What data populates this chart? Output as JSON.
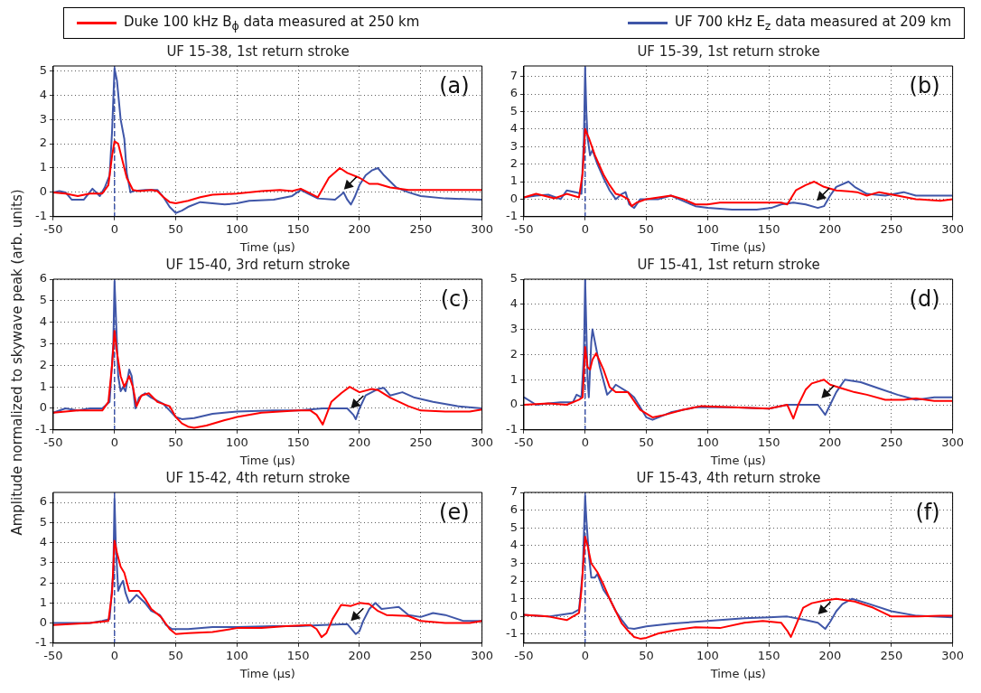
{
  "chart_data": [
    {
      "type": "line",
      "title": "UF 15-38, 1st return stroke",
      "xlabel": "Time (μs)",
      "ylabel": "Amplitude normalized to skywave peak (arb. units)",
      "legend": "top",
      "grid": true,
      "marker": "none",
      "line_style": "solid",
      "xlim": [
        -50,
        300
      ],
      "xticks": [
        -50,
        0,
        50,
        100,
        150,
        200,
        250,
        300
      ],
      "ylim": [
        -1,
        5.2
      ],
      "yticks": [
        -1,
        0,
        1,
        2,
        3,
        4,
        5
      ],
      "annotations": [
        "(a)"
      ],
      "ref_lines": [
        {
          "axis": "x",
          "value": 0,
          "color": "#3f56a8",
          "line_style": "dashed"
        }
      ],
      "series": [
        {
          "name": "Duke 100 kHz B$_{ϕ}$ data measured at 250 km",
          "color": "#ff0000",
          "x": [
            -50,
            -40,
            -30,
            -20,
            -10,
            -5,
            -2,
            0,
            3,
            6,
            10,
            15,
            20,
            30,
            35,
            40,
            45,
            50,
            60,
            70,
            80,
            100,
            120,
            135,
            145,
            152,
            158,
            166,
            175,
            184,
            190,
            200,
            208,
            215,
            225,
            240,
            260,
            280,
            300
          ],
          "values": [
            0,
            -0.05,
            -0.15,
            -0.05,
            -0.05,
            0.3,
            1.5,
            2.1,
            2.0,
            1.4,
            0.6,
            0.1,
            0.05,
            0.1,
            0.05,
            -0.2,
            -0.4,
            -0.45,
            -0.35,
            -0.2,
            -0.1,
            -0.05,
            0.05,
            0.1,
            0.05,
            0.15,
            0,
            -0.2,
            0.6,
            1.0,
            0.8,
            0.6,
            0.35,
            0.35,
            0.2,
            0.1,
            0.1,
            0.1,
            0.1
          ]
        },
        {
          "name": "UF 700 kHz E$_{z}$ data measured at 209 km",
          "color": "#3f56a8",
          "x": [
            -50,
            -45,
            -40,
            -35,
            -25,
            -18,
            -12,
            -8,
            -4,
            -2,
            0,
            2,
            5,
            8,
            10,
            13,
            15,
            25,
            35,
            40,
            45,
            50,
            55,
            60,
            70,
            80,
            90,
            100,
            110,
            130,
            145,
            152,
            158,
            166,
            180,
            185,
            187,
            190,
            193,
            196,
            200,
            205,
            210,
            215,
            220,
            230,
            240,
            250,
            270,
            300
          ],
          "values": [
            0,
            0.05,
            0,
            -0.3,
            -0.3,
            0.15,
            -0.15,
            0.2,
            0.7,
            2.5,
            5.1,
            4.6,
            3.0,
            2.2,
            0.8,
            0,
            0.05,
            0.1,
            0.1,
            -0.2,
            -0.6,
            -0.85,
            -0.75,
            -0.6,
            -0.4,
            -0.45,
            -0.5,
            -0.45,
            -0.35,
            -0.3,
            -0.15,
            0.1,
            -0.05,
            -0.25,
            -0.3,
            -0.1,
            0,
            -0.3,
            -0.5,
            -0.2,
            0.3,
            0.7,
            0.9,
            1.0,
            0.7,
            0.2,
            0,
            -0.15,
            -0.25,
            -0.3
          ]
        }
      ]
    },
    {
      "type": "line",
      "title": "UF 15-39, 1st return stroke",
      "xlabel": "Time (μs)",
      "grid": true,
      "marker": "none",
      "line_style": "solid",
      "xlim": [
        -50,
        300
      ],
      "xticks": [
        -50,
        0,
        50,
        100,
        150,
        200,
        250,
        300
      ],
      "ylim": [
        -1,
        7.6
      ],
      "yticks": [
        -1,
        0,
        1,
        2,
        3,
        4,
        5,
        6,
        7
      ],
      "annotations": [
        "(b)"
      ],
      "ref_lines": [
        {
          "axis": "x",
          "value": 0,
          "color": "#3f56a8",
          "line_style": "dashed"
        }
      ],
      "series": [
        {
          "color": "#ff0000",
          "x": [
            -50,
            -40,
            -25,
            -15,
            -5,
            -2,
            0,
            3,
            8,
            15,
            20,
            25,
            30,
            35,
            38,
            42,
            50,
            60,
            70,
            80,
            90,
            100,
            110,
            130,
            150,
            160,
            165,
            172,
            180,
            187,
            195,
            205,
            215,
            222,
            230,
            240,
            255,
            270,
            290,
            300
          ],
          "values": [
            0.1,
            0.3,
            0.05,
            0.3,
            0.1,
            1.5,
            4.0,
            3.5,
            2.5,
            1.4,
            0.8,
            0.3,
            0.2,
            0,
            -0.4,
            -0.2,
            0,
            0.1,
            0.2,
            0,
            -0.3,
            -0.3,
            -0.2,
            -0.2,
            -0.2,
            -0.2,
            -0.3,
            0.5,
            0.8,
            1.0,
            0.7,
            0.5,
            0.45,
            0.4,
            0.2,
            0.4,
            0.2,
            0,
            -0.1,
            0
          ]
        },
        {
          "color": "#3f56a8",
          "x": [
            -50,
            -40,
            -30,
            -20,
            -15,
            -8,
            -3,
            -1,
            0,
            1,
            2,
            4,
            6,
            10,
            15,
            20,
            25,
            30,
            33,
            36,
            40,
            45,
            60,
            70,
            80,
            90,
            100,
            120,
            140,
            152,
            160,
            170,
            180,
            190,
            195,
            200,
            205,
            215,
            220,
            230,
            245,
            260,
            270,
            300
          ],
          "values": [
            0.1,
            0.2,
            0.25,
            0,
            0.5,
            0.4,
            0.3,
            3.5,
            7.5,
            5,
            3.5,
            2.5,
            2.8,
            2.0,
            1.2,
            0.5,
            0,
            0.3,
            0.4,
            -0.3,
            -0.5,
            0,
            0,
            0.2,
            -0.1,
            -0.4,
            -0.5,
            -0.6,
            -0.6,
            -0.5,
            -0.3,
            -0.2,
            -0.3,
            -0.5,
            -0.4,
            0.2,
            0.7,
            1.0,
            0.7,
            0.3,
            0.2,
            0.4,
            0.2,
            0.2
          ]
        }
      ]
    },
    {
      "type": "line",
      "title": "UF 15-40, 3rd return stroke",
      "xlabel": "Time (μs)",
      "grid": true,
      "marker": "none",
      "line_style": "solid",
      "xlim": [
        -50,
        300
      ],
      "xticks": [
        -50,
        0,
        50,
        100,
        150,
        200,
        250,
        300
      ],
      "ylim": [
        -1,
        6
      ],
      "yticks": [
        -1,
        0,
        1,
        2,
        3,
        4,
        5,
        6
      ],
      "annotations": [
        "(c)"
      ],
      "ref_lines": [
        {
          "axis": "x",
          "value": 0,
          "color": "#3f56a8",
          "line_style": "dashed"
        }
      ],
      "series": [
        {
          "color": "#ff0000",
          "x": [
            -50,
            -30,
            -10,
            -5,
            -2,
            0,
            2,
            5,
            8,
            12,
            15,
            18,
            22,
            28,
            35,
            45,
            50,
            55,
            60,
            65,
            75,
            90,
            100,
            120,
            150,
            160,
            165,
            170,
            173,
            177,
            185,
            192,
            200,
            210,
            215,
            225,
            240,
            250,
            270,
            290,
            300
          ],
          "values": [
            -0.2,
            -0.1,
            -0.1,
            0.3,
            2,
            3.6,
            2.6,
            1.5,
            1.0,
            1.5,
            1.0,
            0.1,
            0.6,
            0.7,
            0.3,
            0.1,
            -0.4,
            -0.7,
            -0.85,
            -0.9,
            -0.8,
            -0.55,
            -0.4,
            -0.2,
            -0.1,
            -0.1,
            -0.3,
            -0.75,
            -0.3,
            0.3,
            0.7,
            1.0,
            0.75,
            0.9,
            0.85,
            0.5,
            0.1,
            -0.1,
            -0.15,
            -0.15,
            -0.05
          ]
        },
        {
          "color": "#3f56a8",
          "x": [
            -50,
            -40,
            -30,
            -20,
            -10,
            -4,
            -1,
            0,
            1,
            3,
            5,
            7,
            9,
            12,
            14,
            17,
            20,
            25,
            30,
            40,
            45,
            50,
            55,
            65,
            80,
            100,
            130,
            150,
            170,
            190,
            195,
            197,
            200,
            205,
            215,
            220,
            225,
            235,
            245,
            260,
            280,
            300
          ],
          "values": [
            -0.2,
            0,
            -0.1,
            0,
            0,
            0.3,
            3,
            5.9,
            4.5,
            1.5,
            0.8,
            1.0,
            0.8,
            1.8,
            1.5,
            0,
            0.5,
            0.7,
            0.5,
            0.2,
            -0.1,
            -0.4,
            -0.5,
            -0.45,
            -0.25,
            -0.15,
            -0.1,
            -0.1,
            0,
            0,
            -0.3,
            -0.5,
            0,
            0.6,
            0.9,
            0.95,
            0.6,
            0.75,
            0.5,
            0.3,
            0.1,
            0
          ]
        }
      ]
    },
    {
      "type": "line",
      "title": "UF 15-41, 1st return stroke",
      "xlabel": "Time (μs)",
      "grid": true,
      "marker": "none",
      "line_style": "solid",
      "xlim": [
        -50,
        300
      ],
      "xticks": [
        -50,
        0,
        50,
        100,
        150,
        200,
        250,
        300
      ],
      "ylim": [
        -1,
        5
      ],
      "yticks": [
        -1,
        0,
        1,
        2,
        3,
        4,
        5
      ],
      "annotations": [
        "(d)"
      ],
      "ref_lines": [
        {
          "axis": "x",
          "value": 0,
          "color": "#3f56a8",
          "line_style": "dashed"
        }
      ],
      "series": [
        {
          "color": "#ff0000",
          "x": [
            -50,
            -30,
            -15,
            -5,
            -2,
            0,
            2,
            4,
            6,
            9,
            15,
            20,
            25,
            35,
            45,
            55,
            65,
            80,
            95,
            120,
            150,
            165,
            170,
            174,
            180,
            185,
            195,
            200,
            210,
            220,
            230,
            245,
            260,
            270,
            285,
            300
          ],
          "values": [
            0,
            0.05,
            0,
            0.2,
            0.3,
            2.3,
            1.5,
            1.4,
            1.8,
            2.05,
            1.4,
            0.7,
            0.5,
            0.5,
            -0.2,
            -0.5,
            -0.4,
            -0.2,
            -0.05,
            -0.1,
            -0.15,
            0,
            -0.55,
            0,
            0.6,
            0.85,
            1.0,
            0.8,
            0.65,
            0.5,
            0.4,
            0.2,
            0.2,
            0.25,
            0.15,
            0.15
          ]
        },
        {
          "color": "#3f56a8",
          "x": [
            -50,
            -40,
            -30,
            -20,
            -10,
            -7,
            -3,
            -1,
            0,
            1,
            2,
            3,
            5,
            6,
            8,
            12,
            18,
            22,
            25,
            35,
            40,
            45,
            50,
            55,
            70,
            90,
            120,
            150,
            165,
            190,
            196,
            200,
            205,
            212,
            225,
            240,
            255,
            270,
            285,
            300
          ],
          "values": [
            0.3,
            0,
            0.05,
            0.1,
            0.1,
            0.4,
            0.3,
            2,
            5,
            3,
            1,
            0.3,
            2.5,
            3.0,
            2.5,
            1.5,
            0.4,
            0.6,
            0.8,
            0.5,
            0.3,
            -0.1,
            -0.5,
            -0.6,
            -0.3,
            -0.1,
            -0.1,
            -0.15,
            0,
            0,
            -0.4,
            0,
            0.5,
            1.0,
            0.9,
            0.65,
            0.4,
            0.2,
            0.3,
            0.3
          ]
        }
      ]
    },
    {
      "type": "line",
      "title": "UF 15-42, 4th return stroke",
      "xlabel": "Time (μs)",
      "grid": true,
      "marker": "none",
      "line_style": "solid",
      "xlim": [
        -50,
        300
      ],
      "xticks": [
        -50,
        0,
        50,
        100,
        150,
        200,
        250,
        300
      ],
      "ylim": [
        -1,
        6.5
      ],
      "yticks": [
        -1,
        0,
        1,
        2,
        3,
        4,
        5,
        6
      ],
      "annotations": [
        "(e)"
      ],
      "ref_lines": [
        {
          "axis": "x",
          "value": 0,
          "color": "#3f56a8",
          "line_style": "dashed"
        }
      ],
      "series": [
        {
          "color": "#ff0000",
          "x": [
            -50,
            -20,
            -5,
            -2,
            0,
            2,
            5,
            8,
            12,
            20,
            25,
            30,
            38,
            45,
            50,
            60,
            80,
            100,
            120,
            140,
            160,
            165,
            169,
            173,
            178,
            185,
            193,
            200,
            208,
            215,
            222,
            240,
            250,
            270,
            290,
            300
          ],
          "values": [
            -0.1,
            0,
            0.1,
            1.5,
            4.1,
            3.5,
            2.8,
            2.5,
            1.6,
            1.6,
            1.2,
            0.7,
            0.3,
            -0.3,
            -0.55,
            -0.5,
            -0.45,
            -0.25,
            -0.25,
            -0.15,
            -0.1,
            -0.3,
            -0.7,
            -0.5,
            0.2,
            0.9,
            0.85,
            1.0,
            0.95,
            0.6,
            0.4,
            0.35,
            0.1,
            0,
            0,
            0.1
          ]
        },
        {
          "color": "#3f56a8",
          "x": [
            -50,
            -30,
            -20,
            -10,
            -4,
            -1,
            0,
            1,
            3,
            5,
            7,
            9,
            12,
            15,
            18,
            25,
            30,
            37,
            42,
            47,
            60,
            80,
            100,
            130,
            150,
            170,
            190,
            197,
            200,
            203,
            208,
            213,
            218,
            225,
            232,
            240,
            250,
            260,
            270,
            285,
            300
          ],
          "values": [
            0,
            0,
            0,
            0.1,
            0.2,
            2.5,
            6.2,
            4,
            1.6,
            1.9,
            2.1,
            1.5,
            1.0,
            1.2,
            1.4,
            1.0,
            0.6,
            0.4,
            -0.1,
            -0.3,
            -0.3,
            -0.2,
            -0.2,
            -0.15,
            -0.15,
            -0.1,
            -0.05,
            -0.55,
            -0.4,
            0.1,
            0.7,
            1.0,
            0.7,
            0.75,
            0.8,
            0.4,
            0.3,
            0.5,
            0.4,
            0.1,
            0.1
          ]
        }
      ]
    },
    {
      "type": "line",
      "title": "UF 15-43, 4th return stroke",
      "xlabel": "Time (μs)",
      "grid": true,
      "marker": "none",
      "line_style": "solid",
      "xlim": [
        -50,
        300
      ],
      "xticks": [
        -50,
        0,
        50,
        100,
        150,
        200,
        250,
        300
      ],
      "ylim": [
        -1.5,
        7
      ],
      "yticks": [
        -1,
        0,
        1,
        2,
        3,
        4,
        5,
        6,
        7
      ],
      "annotations": [
        "(f)"
      ],
      "ref_lines": [
        {
          "axis": "x",
          "value": 0,
          "color": "#3f56a8",
          "line_style": "dashed"
        }
      ],
      "series": [
        {
          "color": "#ff0000",
          "x": [
            -50,
            -30,
            -15,
            -5,
            -3,
            0,
            2,
            5,
            10,
            15,
            20,
            25,
            30,
            35,
            40,
            45,
            50,
            60,
            75,
            90,
            110,
            130,
            145,
            160,
            165,
            168,
            172,
            178,
            185,
            195,
            205,
            220,
            235,
            250,
            270,
            290,
            300
          ],
          "values": [
            0.1,
            0,
            -0.2,
            0.2,
            1.5,
            4.5,
            4.0,
            3.0,
            2.5,
            1.8,
            1.0,
            0.3,
            -0.4,
            -0.8,
            -1.15,
            -1.25,
            -1.2,
            -0.95,
            -0.75,
            -0.6,
            -0.65,
            -0.35,
            -0.25,
            -0.35,
            -0.8,
            -1.15,
            -0.5,
            0.5,
            0.75,
            0.9,
            1.0,
            0.85,
            0.5,
            0,
            0,
            0.05,
            0.05
          ]
        },
        {
          "color": "#3f56a8",
          "x": [
            -50,
            -40,
            -30,
            -20,
            -10,
            -5,
            -2,
            0,
            1,
            3,
            5,
            8,
            10,
            15,
            20,
            25,
            30,
            35,
            40,
            50,
            70,
            100,
            130,
            150,
            165,
            180,
            190,
            196,
            200,
            205,
            210,
            218,
            230,
            250,
            270,
            300
          ],
          "values": [
            0.1,
            0.05,
            0,
            0.1,
            0.2,
            0.4,
            2.5,
            6.8,
            5.5,
            3.5,
            2.2,
            2.2,
            2.4,
            1.5,
            1.0,
            0.3,
            -0.2,
            -0.65,
            -0.7,
            -0.55,
            -0.4,
            -0.25,
            -0.1,
            -0.05,
            0,
            -0.2,
            -0.35,
            -0.7,
            -0.3,
            0.3,
            0.7,
            1.0,
            0.75,
            0.3,
            0.05,
            -0.05
          ]
        }
      ]
    }
  ]
}
